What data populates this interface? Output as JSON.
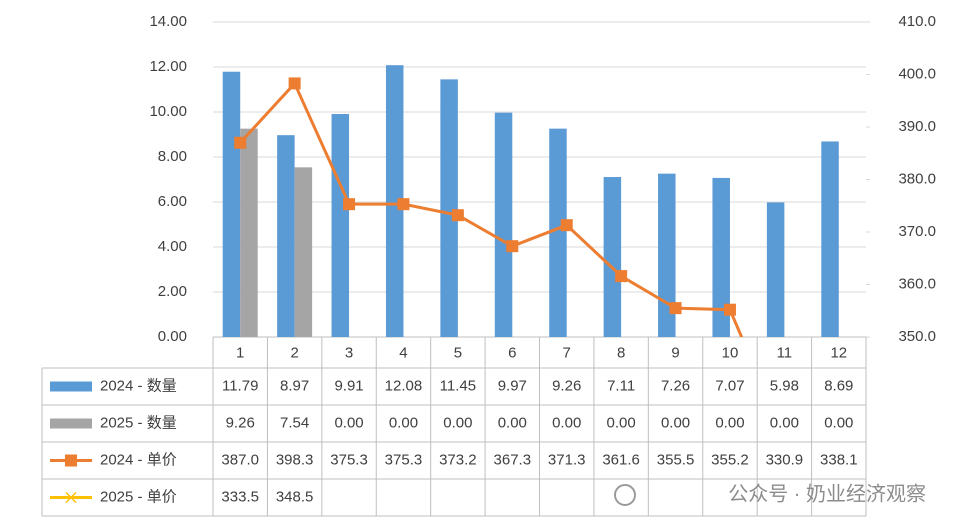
{
  "chart_data": {
    "type": "bar",
    "categories": [
      "1",
      "2",
      "3",
      "4",
      "5",
      "6",
      "7",
      "8",
      "9",
      "10",
      "11",
      "12"
    ],
    "series": [
      {
        "name": "2024 - 数量",
        "color": "#5b9bd5",
        "type": "bar",
        "values": [
          11.79,
          8.97,
          9.91,
          12.08,
          11.45,
          9.97,
          9.26,
          7.11,
          7.26,
          7.07,
          5.98,
          8.69
        ]
      },
      {
        "name": "2025 - 数量",
        "color": "#a5a5a5",
        "type": "bar",
        "values": [
          9.26,
          7.54,
          0,
          0,
          0,
          0,
          0,
          0,
          0,
          0,
          0,
          0
        ],
        "value_labels": [
          "9.26",
          "7.54",
          "0.00",
          "0.00",
          "0.00",
          "0.00",
          "0.00",
          "0.00",
          "0.00",
          "0.00",
          "0.00",
          "0.00"
        ]
      },
      {
        "name": "2024 -  单价",
        "color": "#ed7d31",
        "type": "line",
        "axis": "y2",
        "marker": "square",
        "values": [
          387.0,
          398.3,
          375.3,
          375.3,
          373.2,
          367.3,
          371.3,
          361.6,
          355.5,
          355.2,
          330.9,
          338.1
        ],
        "value_labels": [
          "387.0",
          "398.3",
          "375.3",
          "375.3",
          "373.2",
          "367.3",
          "371.3",
          "361.6",
          "355.5",
          "355.2",
          "330.9",
          "338.1"
        ]
      },
      {
        "name": "2025 -  单价",
        "color": "#ffc000",
        "type": "line",
        "axis": "y2",
        "marker": "x",
        "values": [
          333.5,
          348.5,
          null,
          null,
          null,
          null,
          null,
          null,
          null,
          null,
          null,
          null
        ],
        "value_labels": [
          "333.5",
          "348.5",
          null,
          null,
          null,
          null,
          null,
          null,
          null,
          null,
          null,
          null
        ]
      }
    ],
    "ylim": [
      0,
      14
    ],
    "yticks": [
      {
        "value": 0,
        "label": "0.00"
      },
      {
        "value": 2,
        "label": "2.00"
      },
      {
        "value": 4,
        "label": "4.00"
      },
      {
        "value": 6,
        "label": "6.00"
      },
      {
        "value": 8,
        "label": "8.00"
      },
      {
        "value": 10,
        "label": "10.00"
      },
      {
        "value": 12,
        "label": "12.00"
      },
      {
        "value": 14,
        "label": "14.00"
      }
    ],
    "y2lim": [
      350,
      410
    ],
    "y2ticks": [
      {
        "value": 350,
        "label": "350.0"
      },
      {
        "value": 360,
        "label": "360.0"
      },
      {
        "value": 370,
        "label": "370.0"
      },
      {
        "value": 380,
        "label": "380.0"
      },
      {
        "value": 390,
        "label": "390.0"
      },
      {
        "value": 400,
        "label": "400.0"
      },
      {
        "value": 410,
        "label": "410.0"
      }
    ],
    "grid": true,
    "data_table": true,
    "watermark": "公众号 · 奶业经济观察"
  }
}
